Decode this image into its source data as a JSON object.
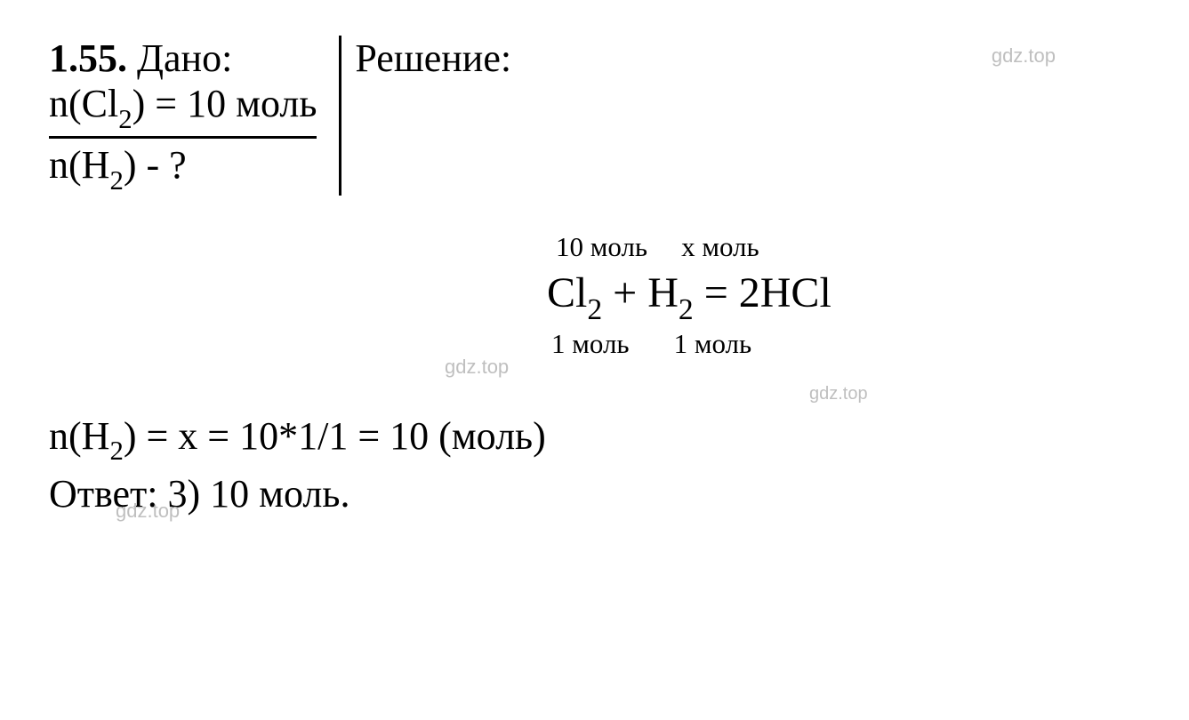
{
  "watermarks": {
    "w1": "gdz.top",
    "w2": "gdz.top",
    "w3": "gdz.top",
    "w4": "gdz.top"
  },
  "problem": {
    "number": "1.55.",
    "given_label": "Дано:",
    "given_line2_prefix": "n(Cl",
    "given_line2_sub": "2",
    "given_line2_suffix": ") = 10 моль",
    "given_line3_prefix": "n(H",
    "given_line3_sub": "2",
    "given_line3_suffix": ") - ?",
    "solution_label": "Решение:"
  },
  "equation": {
    "top_ann1": "10 моль",
    "top_ann2": "x моль",
    "main_cl": "Cl",
    "main_cl_sub": "2",
    "main_plus": " + H",
    "main_h_sub": "2",
    "main_eq": " = 2HCl",
    "bot_ann1": "1 моль",
    "bot_ann2": "1 моль"
  },
  "calculation": {
    "prefix": "n(H",
    "sub": "2",
    "suffix": ") = x = 10*1/1 = 10 (моль)"
  },
  "answer": {
    "text": "Ответ: 3) 10 моль."
  },
  "colors": {
    "text": "#000000",
    "watermark": "#bfbfbf",
    "background": "#ffffff"
  },
  "typography": {
    "main_fontsize": 44,
    "equation_fontsize": 48,
    "annotation_fontsize": 31,
    "watermark_fontsize": 22,
    "font_family": "Times New Roman"
  }
}
